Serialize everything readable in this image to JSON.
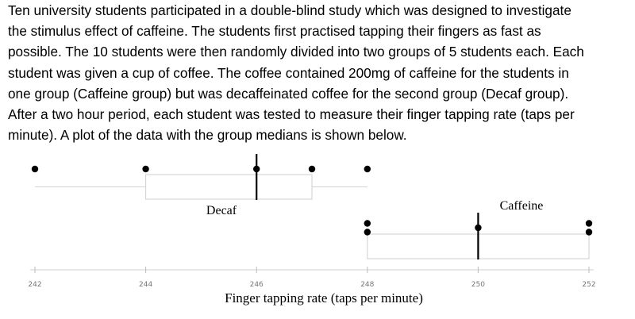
{
  "text": {
    "lines": [
      "Ten university students participated in a double-blind study which was designed to investigate",
      "the stimulus effect of caffeine. The students first practised tapping their fingers as fast as",
      "possible. The 10 students were then randomly divided into two groups of 5 students each. Each",
      "student was given a cup of coffee. The coffee contained 200mg of caffeine for the students in",
      "one group (Caffeine group) but was decaffeinated coffee for the second group (Decaf group).",
      "After a two hour period, each student was tested to measure their finger tapping rate (taps per",
      "minute). A plot of the data with the group medians is shown below."
    ]
  },
  "chart_data": {
    "type": "dot-plot-with-median",
    "xlabel": "Finger tapping rate (taps per minute)",
    "xlim": [
      242,
      252
    ],
    "ticks": [
      "242",
      "244",
      "246",
      "248",
      "250",
      "252"
    ],
    "groups": [
      {
        "name": "Decaf",
        "values": [
          242,
          244,
          246,
          247,
          248
        ],
        "median": 246,
        "whisker_range": [
          242,
          248
        ],
        "box_range": [
          244,
          247
        ]
      },
      {
        "name": "Caffeine",
        "values": [
          248,
          248,
          250,
          252,
          252
        ],
        "median": 250,
        "whisker_range": [
          248,
          252
        ],
        "box_range": [
          248,
          252
        ]
      }
    ]
  }
}
